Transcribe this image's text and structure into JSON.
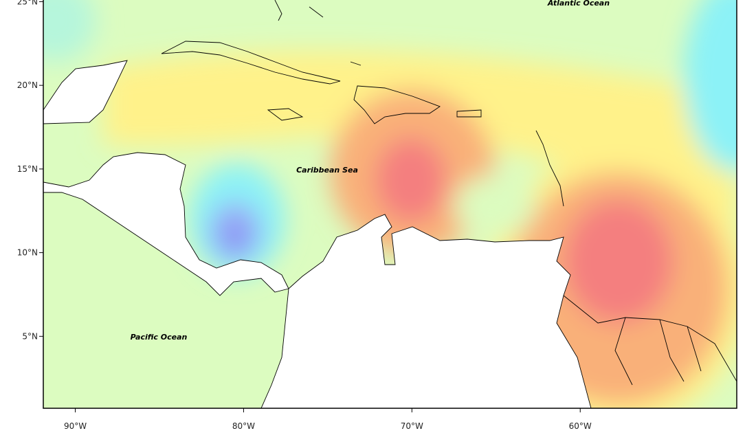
{
  "map": {
    "xlim": [
      -91.9,
      -50.7
    ],
    "ylim": [
      0.7,
      25.1
    ],
    "xticks": [
      {
        "value": -90,
        "label": "90°W"
      },
      {
        "value": -80,
        "label": "80°W"
      },
      {
        "value": -70,
        "label": "70°W"
      },
      {
        "value": -60,
        "label": "60°W"
      }
    ],
    "yticks": [
      {
        "value": 5,
        "label": "5°N"
      },
      {
        "value": 10,
        "label": "10°N"
      },
      {
        "value": 15,
        "label": "15°N"
      },
      {
        "value": 20,
        "label": "20°N"
      },
      {
        "value": 25,
        "label": "25°N"
      }
    ],
    "ocean_labels": [
      "Atlantic Ocean",
      "Caribbean Sea",
      "Pacific Ocean"
    ]
  }
}
